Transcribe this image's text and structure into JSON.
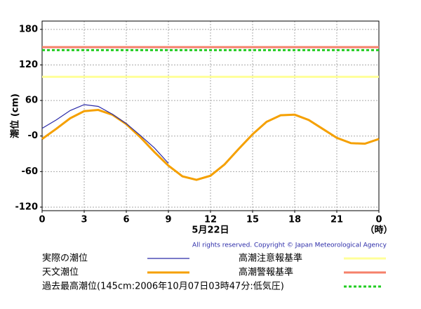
{
  "chart_data": {
    "type": "line",
    "y_label": "潮位 (cm)",
    "x_label": "5月22日",
    "x_unit": "（時）",
    "copyright": "All rights reserved. Copyright © Japan Meteorological Agency",
    "x": [
      0,
      1,
      2,
      3,
      4,
      5,
      6,
      7,
      8,
      9,
      10,
      11,
      12,
      13,
      14,
      15,
      16,
      17,
      18,
      19,
      20,
      21,
      22,
      23,
      24
    ],
    "series": [
      {
        "name": "実際の潮位",
        "color": "#2a2aa8",
        "width": 1.2,
        "values": [
          13,
          27,
          43,
          53,
          50,
          37,
          21,
          1,
          -20,
          -46,
          null,
          null,
          null,
          null,
          null,
          null,
          null,
          null,
          null,
          null,
          null,
          null,
          null,
          null,
          null
        ]
      },
      {
        "name": "天文潮位",
        "color": "#f5a000",
        "width": 3,
        "values": [
          -5,
          12,
          30,
          42,
          44,
          36,
          20,
          -2,
          -27,
          -50,
          -68,
          -74,
          -67,
          -48,
          -22,
          3,
          24,
          35,
          36,
          27,
          12,
          -3,
          -12,
          -13,
          -5
        ]
      }
    ],
    "reference_lines": [
      {
        "name": "高潮注意報基準",
        "value": 100,
        "color": "#ffff99",
        "width": 3,
        "dashed": false
      },
      {
        "name": "高潮警報基準",
        "value": 150,
        "color": "#f5806a",
        "width": 3,
        "dashed": false
      },
      {
        "name": "過去最高潮位(145cm:2006年10月07日03時47分:低気圧)",
        "value": 145,
        "color": "#22cc22",
        "width": 3,
        "dashed": true
      }
    ],
    "xlim": [
      0,
      24
    ],
    "xticks": [
      0,
      3,
      6,
      9,
      12,
      15,
      18,
      21,
      {
        "value": 24,
        "label": "0"
      }
    ],
    "ylim": [
      -126,
      194
    ],
    "yticks": [
      180,
      120,
      60,
      {
        "value": 0,
        "label": "-0"
      },
      -60,
      -120
    ],
    "grid": true
  }
}
